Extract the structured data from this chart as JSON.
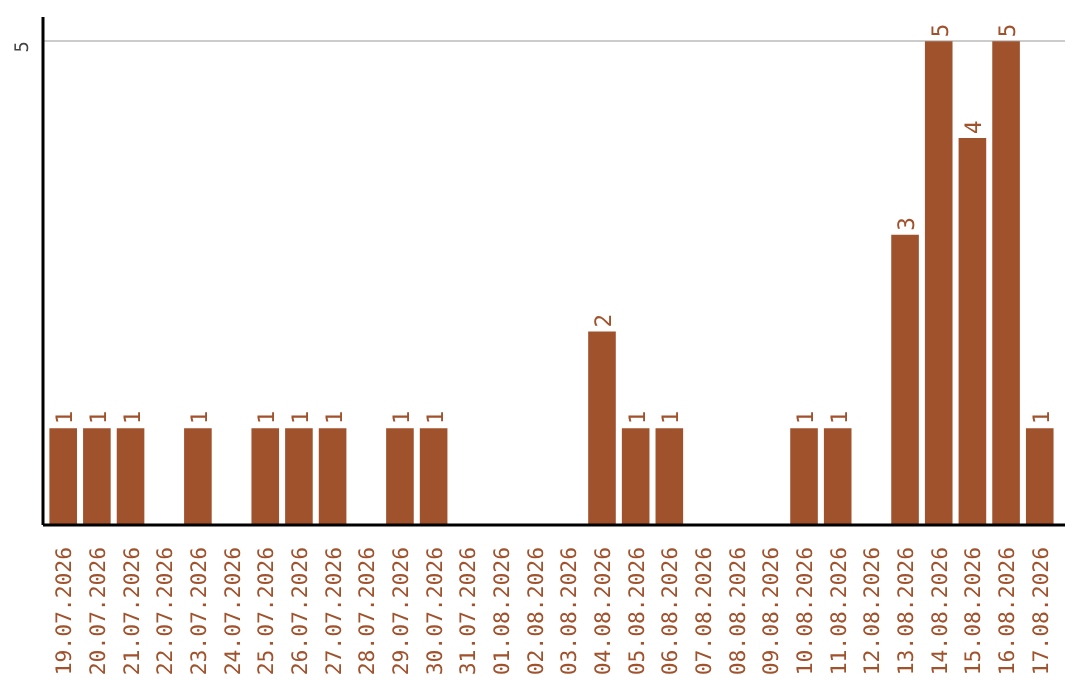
{
  "chart_data": {
    "type": "bar",
    "categories": [
      "19.07.2026",
      "20.07.2026",
      "21.07.2026",
      "22.07.2026",
      "23.07.2026",
      "24.07.2026",
      "25.07.2026",
      "26.07.2026",
      "27.07.2026",
      "28.07.2026",
      "29.07.2026",
      "30.07.2026",
      "31.07.2026",
      "01.08.2026",
      "02.08.2026",
      "03.08.2026",
      "04.08.2026",
      "05.08.2026",
      "06.08.2026",
      "07.08.2026",
      "08.08.2026",
      "09.08.2026",
      "10.08.2026",
      "11.08.2026",
      "12.08.2026",
      "13.08.2026",
      "14.08.2026",
      "15.08.2026",
      "16.08.2026",
      "17.08.2026"
    ],
    "values": [
      1,
      1,
      1,
      0,
      1,
      0,
      1,
      1,
      1,
      0,
      1,
      1,
      0,
      0,
      0,
      0,
      2,
      1,
      1,
      0,
      0,
      0,
      1,
      1,
      0,
      3,
      5,
      4,
      5,
      1
    ],
    "value_labels": [
      "1",
      "1",
      "1",
      null,
      "1",
      null,
      "1",
      "1",
      "1",
      null,
      "1",
      "1",
      null,
      null,
      null,
      null,
      "2",
      "1",
      "1",
      null,
      null,
      null,
      "1",
      "1",
      null,
      "3",
      "5",
      "4",
      "5",
      "1"
    ],
    "color": "#a0522d",
    "ylim": [
      0,
      5.25
    ],
    "yticks": [
      5
    ],
    "grid": "y"
  }
}
